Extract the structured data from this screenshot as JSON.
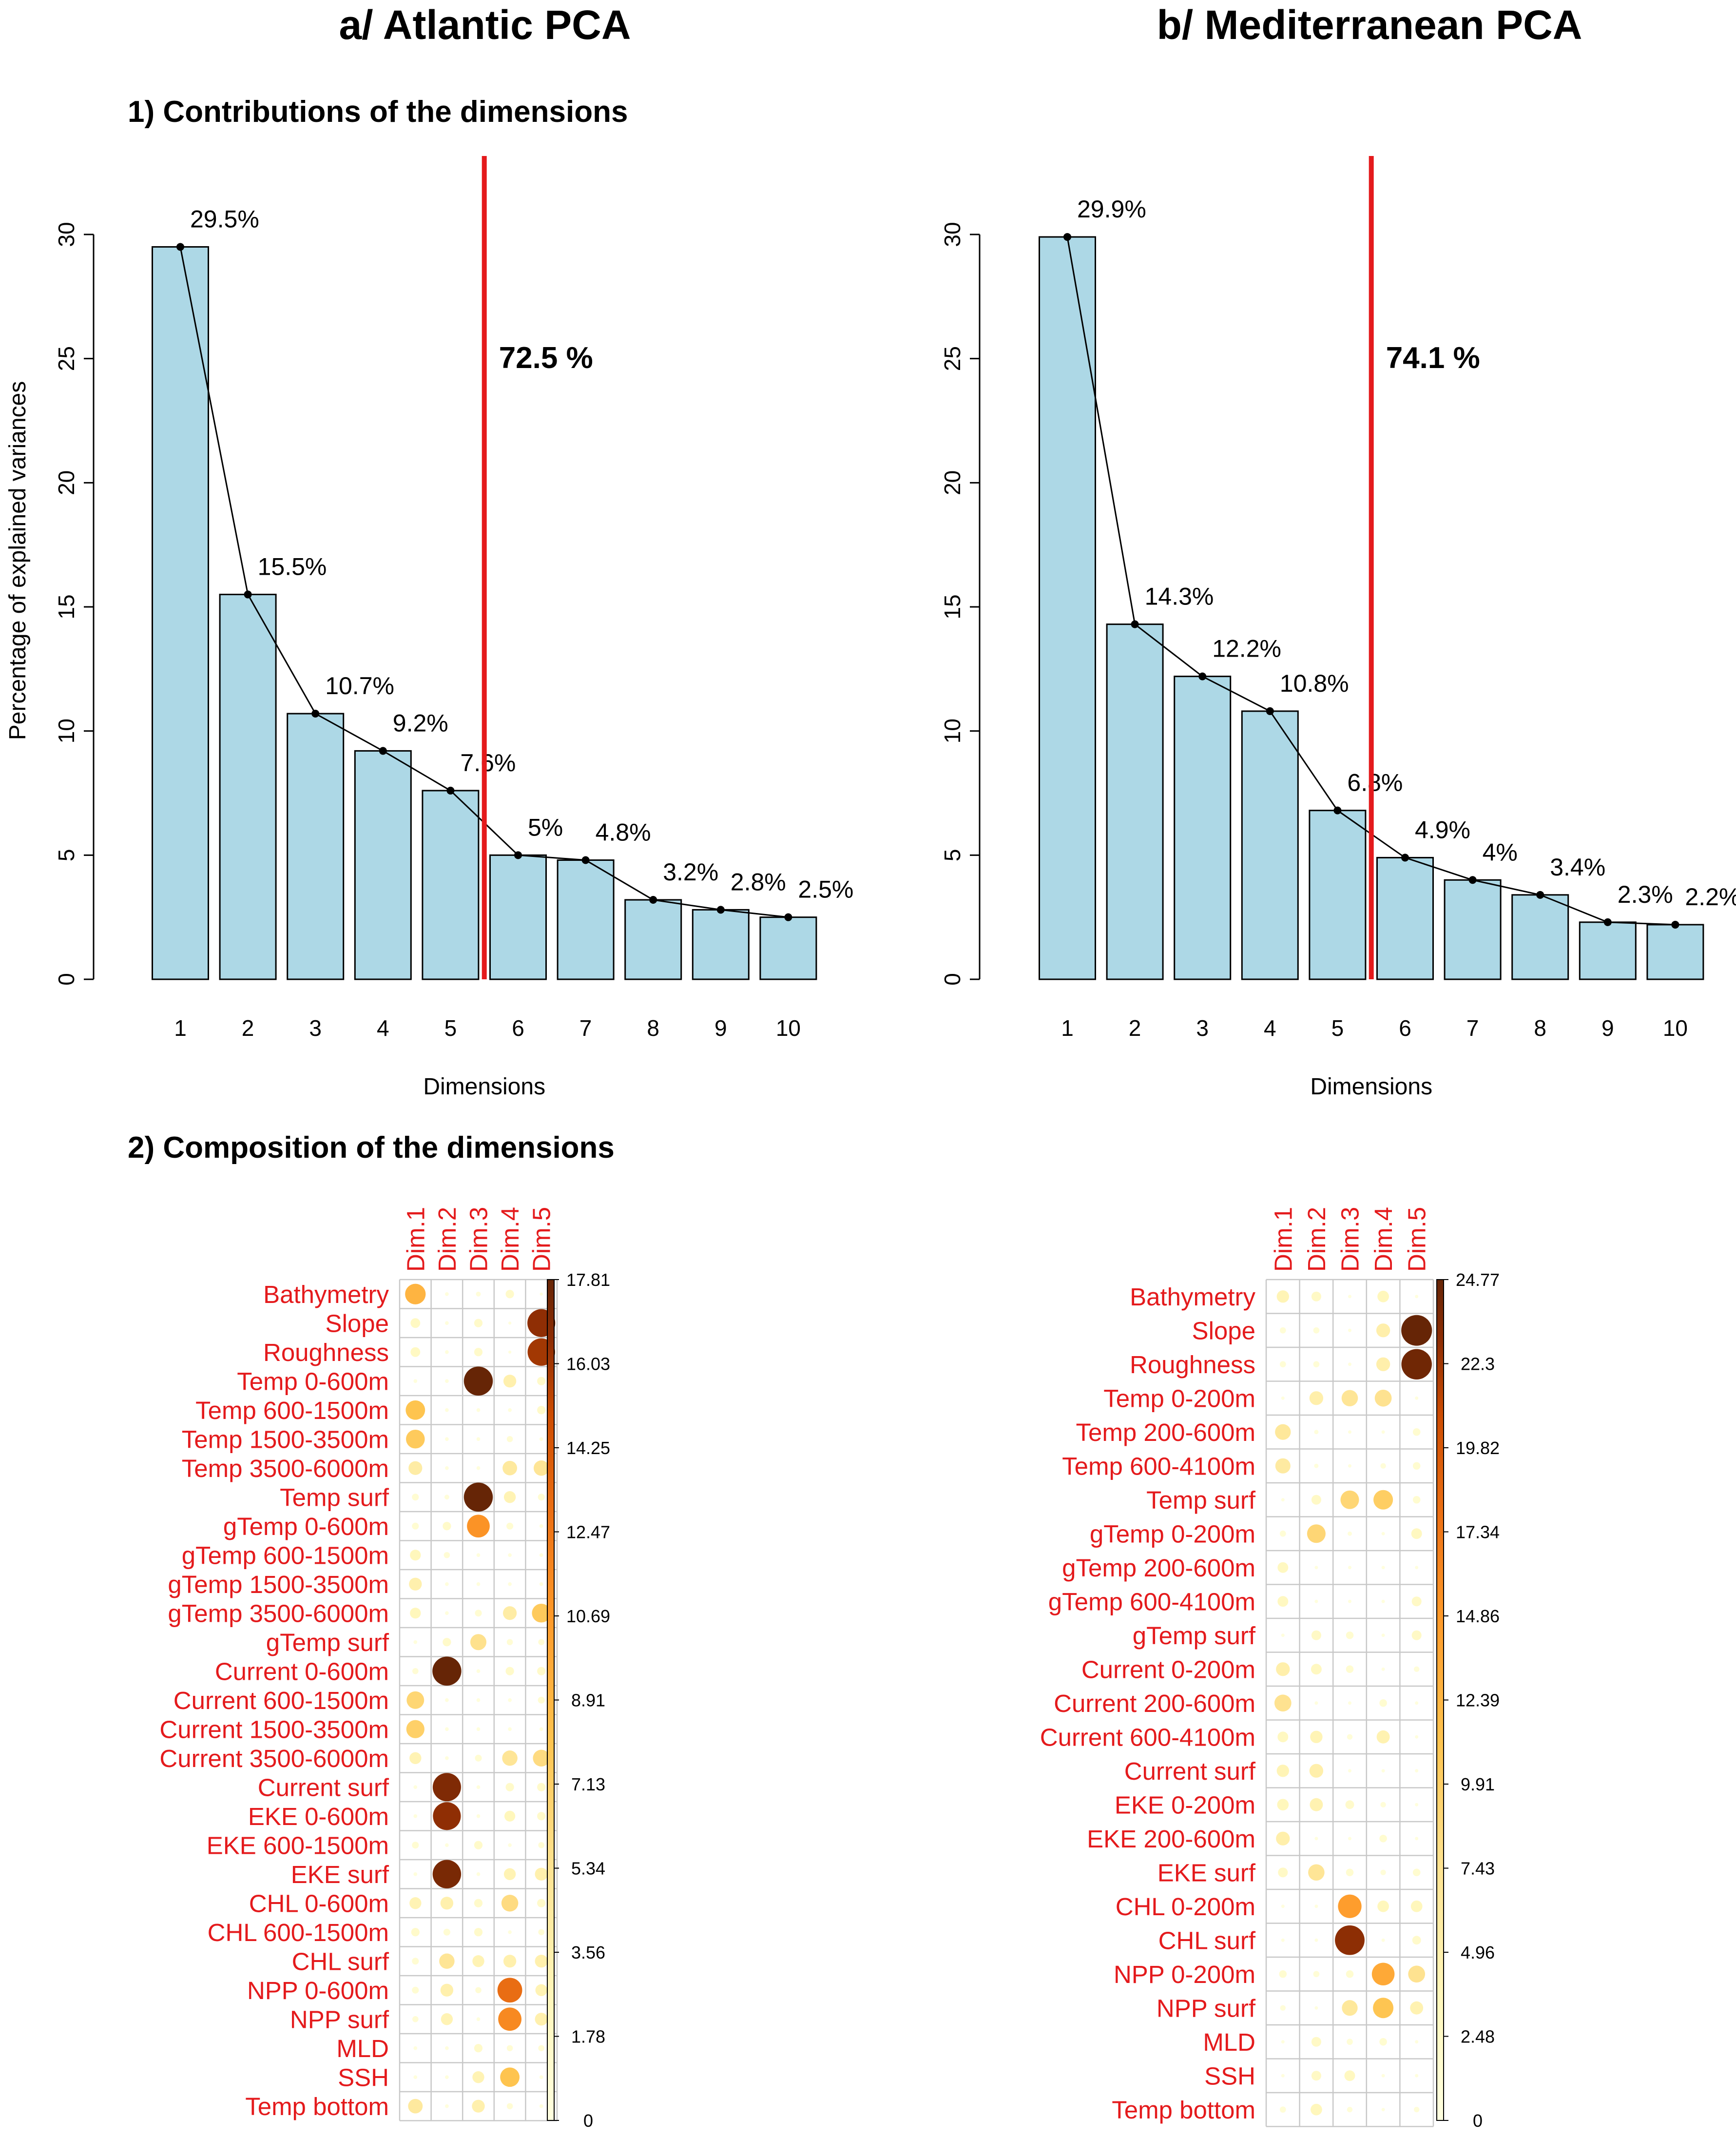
{
  "panels": [
    {
      "id": "a",
      "title": "a/ Atlantic PCA"
    },
    {
      "id": "b",
      "title": "b/ Mediterranean PCA"
    }
  ],
  "sections": {
    "contributions": "1) Contributions of the dimensions",
    "composition": "2) Composition of the dimensions"
  },
  "colors": {
    "bar_fill": "#add8e6",
    "cutoff_line": "#e41a1c",
    "variable_labels": "#e41a1c",
    "colorscale": [
      "#ffffe0",
      "#fee391",
      "#fec44f",
      "#fe9929",
      "#ec7014",
      "#cc4c02",
      "#8c2d04",
      "#662506"
    ]
  },
  "chart_data": [
    {
      "type": "bar",
      "panel": "a",
      "title": "1) Contributions of the dimensions",
      "xlabel": "Dimensions",
      "ylabel": "Percentage of explained variances",
      "categories": [
        "1",
        "2",
        "3",
        "4",
        "5",
        "6",
        "7",
        "8",
        "9",
        "10"
      ],
      "values": [
        29.5,
        15.5,
        10.7,
        9.2,
        7.6,
        5.0,
        4.8,
        3.2,
        2.8,
        2.5
      ],
      "labels": [
        "29.5%",
        "15.5%",
        "10.7%",
        "9.2%",
        "7.6%",
        "5%",
        "4.8%",
        "3.2%",
        "2.8%",
        "2.5%"
      ],
      "yticks": [
        "0",
        "5",
        "10",
        "15",
        "20",
        "25",
        "30"
      ],
      "ylim": [
        0,
        30
      ],
      "line_overlay": true,
      "cutoff_after_dimension": 5,
      "cumulative_label": "72.5 %"
    },
    {
      "type": "bar",
      "panel": "b",
      "title": "1) Contributions of the dimensions",
      "xlabel": "Dimensions",
      "ylabel": "",
      "categories": [
        "1",
        "2",
        "3",
        "4",
        "5",
        "6",
        "7",
        "8",
        "9",
        "10"
      ],
      "values": [
        29.9,
        14.3,
        12.2,
        10.8,
        6.8,
        4.9,
        4.0,
        3.4,
        2.3,
        2.2
      ],
      "labels": [
        "29.9%",
        "14.3%",
        "12.2%",
        "10.8%",
        "6.8%",
        "4.9%",
        "4%",
        "3.4%",
        "2.3%",
        "2.2%"
      ],
      "yticks": [
        "0",
        "5",
        "10",
        "15",
        "20",
        "25",
        "30"
      ],
      "ylim": [
        0,
        30
      ],
      "line_overlay": true,
      "cutoff_after_dimension": 5,
      "cumulative_label": "74.1 %"
    },
    {
      "type": "heatmap",
      "panel": "a",
      "title": "2) Composition of the dimensions",
      "columns": [
        "Dim.1",
        "Dim.2",
        "Dim.3",
        "Dim.4",
        "Dim.5"
      ],
      "rows": [
        "Bathymetry",
        "Slope",
        "Roughness",
        "Temp 0-600m",
        "Temp 600-1500m",
        "Temp 1500-3500m",
        "Temp 3500-6000m",
        "Temp surf",
        "gTemp 0-600m",
        "gTemp 600-1500m",
        "gTemp 1500-3500m",
        "gTemp 3500-6000m",
        "gTemp surf",
        "Current 0-600m",
        "Current 600-1500m",
        "Current 1500-3500m",
        "Current 3500-6000m",
        "Current surf",
        "EKE 0-600m",
        "EKE 600-1500m",
        "EKE surf",
        "CHL 0-600m",
        "CHL 600-1500m",
        "CHL surf",
        "NPP 0-600m",
        "NPP surf",
        "MLD",
        "SSH",
        "Temp bottom"
      ],
      "values": [
        [
          9.0,
          0.3,
          0.5,
          1.5,
          0.2
        ],
        [
          2.0,
          0.3,
          1.5,
          0.2,
          16.5
        ],
        [
          2.0,
          0.3,
          1.5,
          0.2,
          16.0
        ],
        [
          0.3,
          0.3,
          17.8,
          3.5,
          1.5
        ],
        [
          8.0,
          0.3,
          0.3,
          0.3,
          1.5
        ],
        [
          7.5,
          0.3,
          0.3,
          0.8,
          0.3
        ],
        [
          4.0,
          0.3,
          0.3,
          4.5,
          5.0
        ],
        [
          1.0,
          0.5,
          17.8,
          3.0,
          1.0
        ],
        [
          1.0,
          1.5,
          11.0,
          1.0,
          0.3
        ],
        [
          2.5,
          0.8,
          0.3,
          0.3,
          0.3
        ],
        [
          3.5,
          0.3,
          0.3,
          0.3,
          0.3
        ],
        [
          2.5,
          0.3,
          1.0,
          4.0,
          7.5
        ],
        [
          0.3,
          1.5,
          5.5,
          0.8,
          0.8
        ],
        [
          0.8,
          17.8,
          0.3,
          1.5,
          1.5
        ],
        [
          6.5,
          0.3,
          0.3,
          0.3,
          1.0
        ],
        [
          7.0,
          0.3,
          0.3,
          0.3,
          0.3
        ],
        [
          3.0,
          0.3,
          1.0,
          5.0,
          6.0
        ],
        [
          0.3,
          17.0,
          0.3,
          1.5,
          1.5
        ],
        [
          0.3,
          16.5,
          0.3,
          2.5,
          1.5
        ],
        [
          1.0,
          0.3,
          1.5,
          0.3,
          0.8
        ],
        [
          0.3,
          17.2,
          0.3,
          3.0,
          3.5
        ],
        [
          3.0,
          3.5,
          1.5,
          6.0,
          1.5
        ],
        [
          1.5,
          1.0,
          1.5,
          0.3,
          0.8
        ],
        [
          1.0,
          5.0,
          3.0,
          3.5,
          3.5
        ],
        [
          1.0,
          3.5,
          0.8,
          13.0,
          3.0
        ],
        [
          0.8,
          3.0,
          0.3,
          11.5,
          3.5
        ],
        [
          0.3,
          0.3,
          1.5,
          0.8,
          0.8
        ],
        [
          0.3,
          0.3,
          3.0,
          8.0,
          0.3
        ],
        [
          4.5,
          0.3,
          3.5,
          0.8,
          0.3
        ]
      ],
      "scale_max": 17.81,
      "colorbar_ticks": [
        "17.81",
        "16.03",
        "14.25",
        "12.47",
        "10.69",
        "8.91",
        "7.13",
        "5.34",
        "3.56",
        "1.78",
        "0"
      ]
    },
    {
      "type": "heatmap",
      "panel": "b",
      "title": "2) Composition of the dimensions",
      "columns": [
        "Dim.1",
        "Dim.2",
        "Dim.3",
        "Dim.4",
        "Dim.5"
      ],
      "rows": [
        "Bathymetry",
        "Slope",
        "Roughness",
        "Temp 0-200m",
        "Temp 200-600m",
        "Temp 600-4100m",
        "Temp surf",
        "gTemp 0-200m",
        "gTemp 200-600m",
        "gTemp 600-4100m",
        "gTemp surf",
        "Current 0-200m",
        "Current 200-600m",
        "Current 600-4100m",
        "Current surf",
        "EKE 0-200m",
        "EKE 200-600m",
        "EKE surf",
        "CHL 0-200m",
        "CHL surf",
        "NPP 0-200m",
        "NPP surf",
        "MLD",
        "SSH",
        "Temp bottom"
      ],
      "values": [
        [
          4.0,
          2.5,
          0.3,
          3.5,
          0.3
        ],
        [
          1.0,
          1.0,
          0.3,
          5.0,
          24.77
        ],
        [
          1.0,
          1.0,
          0.3,
          5.0,
          24.3
        ],
        [
          0.3,
          5.0,
          7.0,
          7.5,
          0.3
        ],
        [
          6.5,
          0.5,
          0.3,
          0.3,
          1.5
        ],
        [
          6.0,
          0.5,
          0.3,
          0.8,
          1.5
        ],
        [
          0.3,
          2.5,
          9.0,
          10.0,
          1.5
        ],
        [
          1.0,
          9.0,
          0.5,
          0.3,
          3.0
        ],
        [
          3.0,
          0.3,
          0.3,
          0.3,
          0.3
        ],
        [
          3.0,
          0.3,
          0.3,
          0.3,
          2.5
        ],
        [
          0.3,
          2.5,
          1.5,
          0.3,
          2.5
        ],
        [
          5.0,
          3.0,
          1.5,
          0.3,
          0.8
        ],
        [
          7.5,
          0.3,
          0.3,
          1.5,
          0.3
        ],
        [
          3.0,
          4.0,
          0.8,
          4.5,
          0.3
        ],
        [
          4.0,
          5.0,
          0.3,
          0.3,
          0.3
        ],
        [
          3.5,
          4.5,
          2.0,
          0.8,
          0.3
        ],
        [
          5.0,
          0.3,
          0.3,
          1.5,
          0.3
        ],
        [
          2.5,
          7.0,
          1.5,
          0.8,
          1.5
        ],
        [
          0.3,
          0.3,
          14.5,
          3.5,
          3.5
        ],
        [
          0.3,
          0.3,
          23.0,
          0.3,
          2.0
        ],
        [
          1.5,
          1.0,
          1.5,
          13.5,
          7.5
        ],
        [
          0.8,
          0.3,
          6.5,
          11.0,
          4.5
        ],
        [
          0.3,
          2.5,
          1.0,
          1.5,
          0.3
        ],
        [
          0.3,
          2.5,
          3.0,
          0.3,
          0.3
        ],
        [
          1.0,
          3.5,
          0.8,
          0.3,
          0.8
        ]
      ],
      "scale_max": 24.77,
      "colorbar_ticks": [
        "24.77",
        "22.3",
        "19.82",
        "17.34",
        "14.86",
        "12.39",
        "9.91",
        "7.43",
        "4.96",
        "2.48",
        "0"
      ]
    }
  ]
}
